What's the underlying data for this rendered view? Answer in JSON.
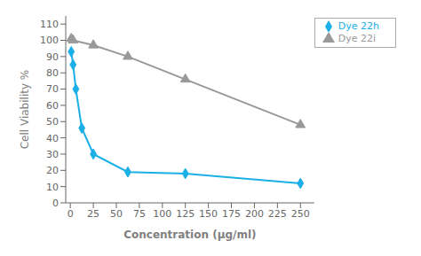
{
  "chart_data": {
    "type": "line",
    "xlabel": "Concentration (μg/ml)",
    "ylabel": "Cell Viability %",
    "xlim": [
      -5,
      265
    ],
    "ylim": [
      0,
      115
    ],
    "xticks": [
      0,
      25,
      50,
      75,
      100,
      125,
      150,
      175,
      200,
      225,
      250
    ],
    "yticks": [
      0,
      10,
      20,
      30,
      40,
      50,
      60,
      70,
      80,
      90,
      100,
      110
    ],
    "grid": false,
    "legend": "upper right",
    "series": [
      {
        "name": "Dye 22h",
        "color": "#1AAFE6",
        "marker": "diamond",
        "x": [
          1,
          3,
          6,
          12.5,
          25,
          62.5,
          125,
          250
        ],
        "values": [
          93,
          85,
          70,
          46,
          30,
          19,
          18,
          12
        ]
      },
      {
        "name": "Dye 22i",
        "color": "#999999",
        "marker": "triangle",
        "x": [
          1,
          3,
          25,
          62.5,
          125,
          250
        ],
        "values": [
          101,
          100,
          97,
          90,
          76,
          48
        ]
      }
    ]
  }
}
